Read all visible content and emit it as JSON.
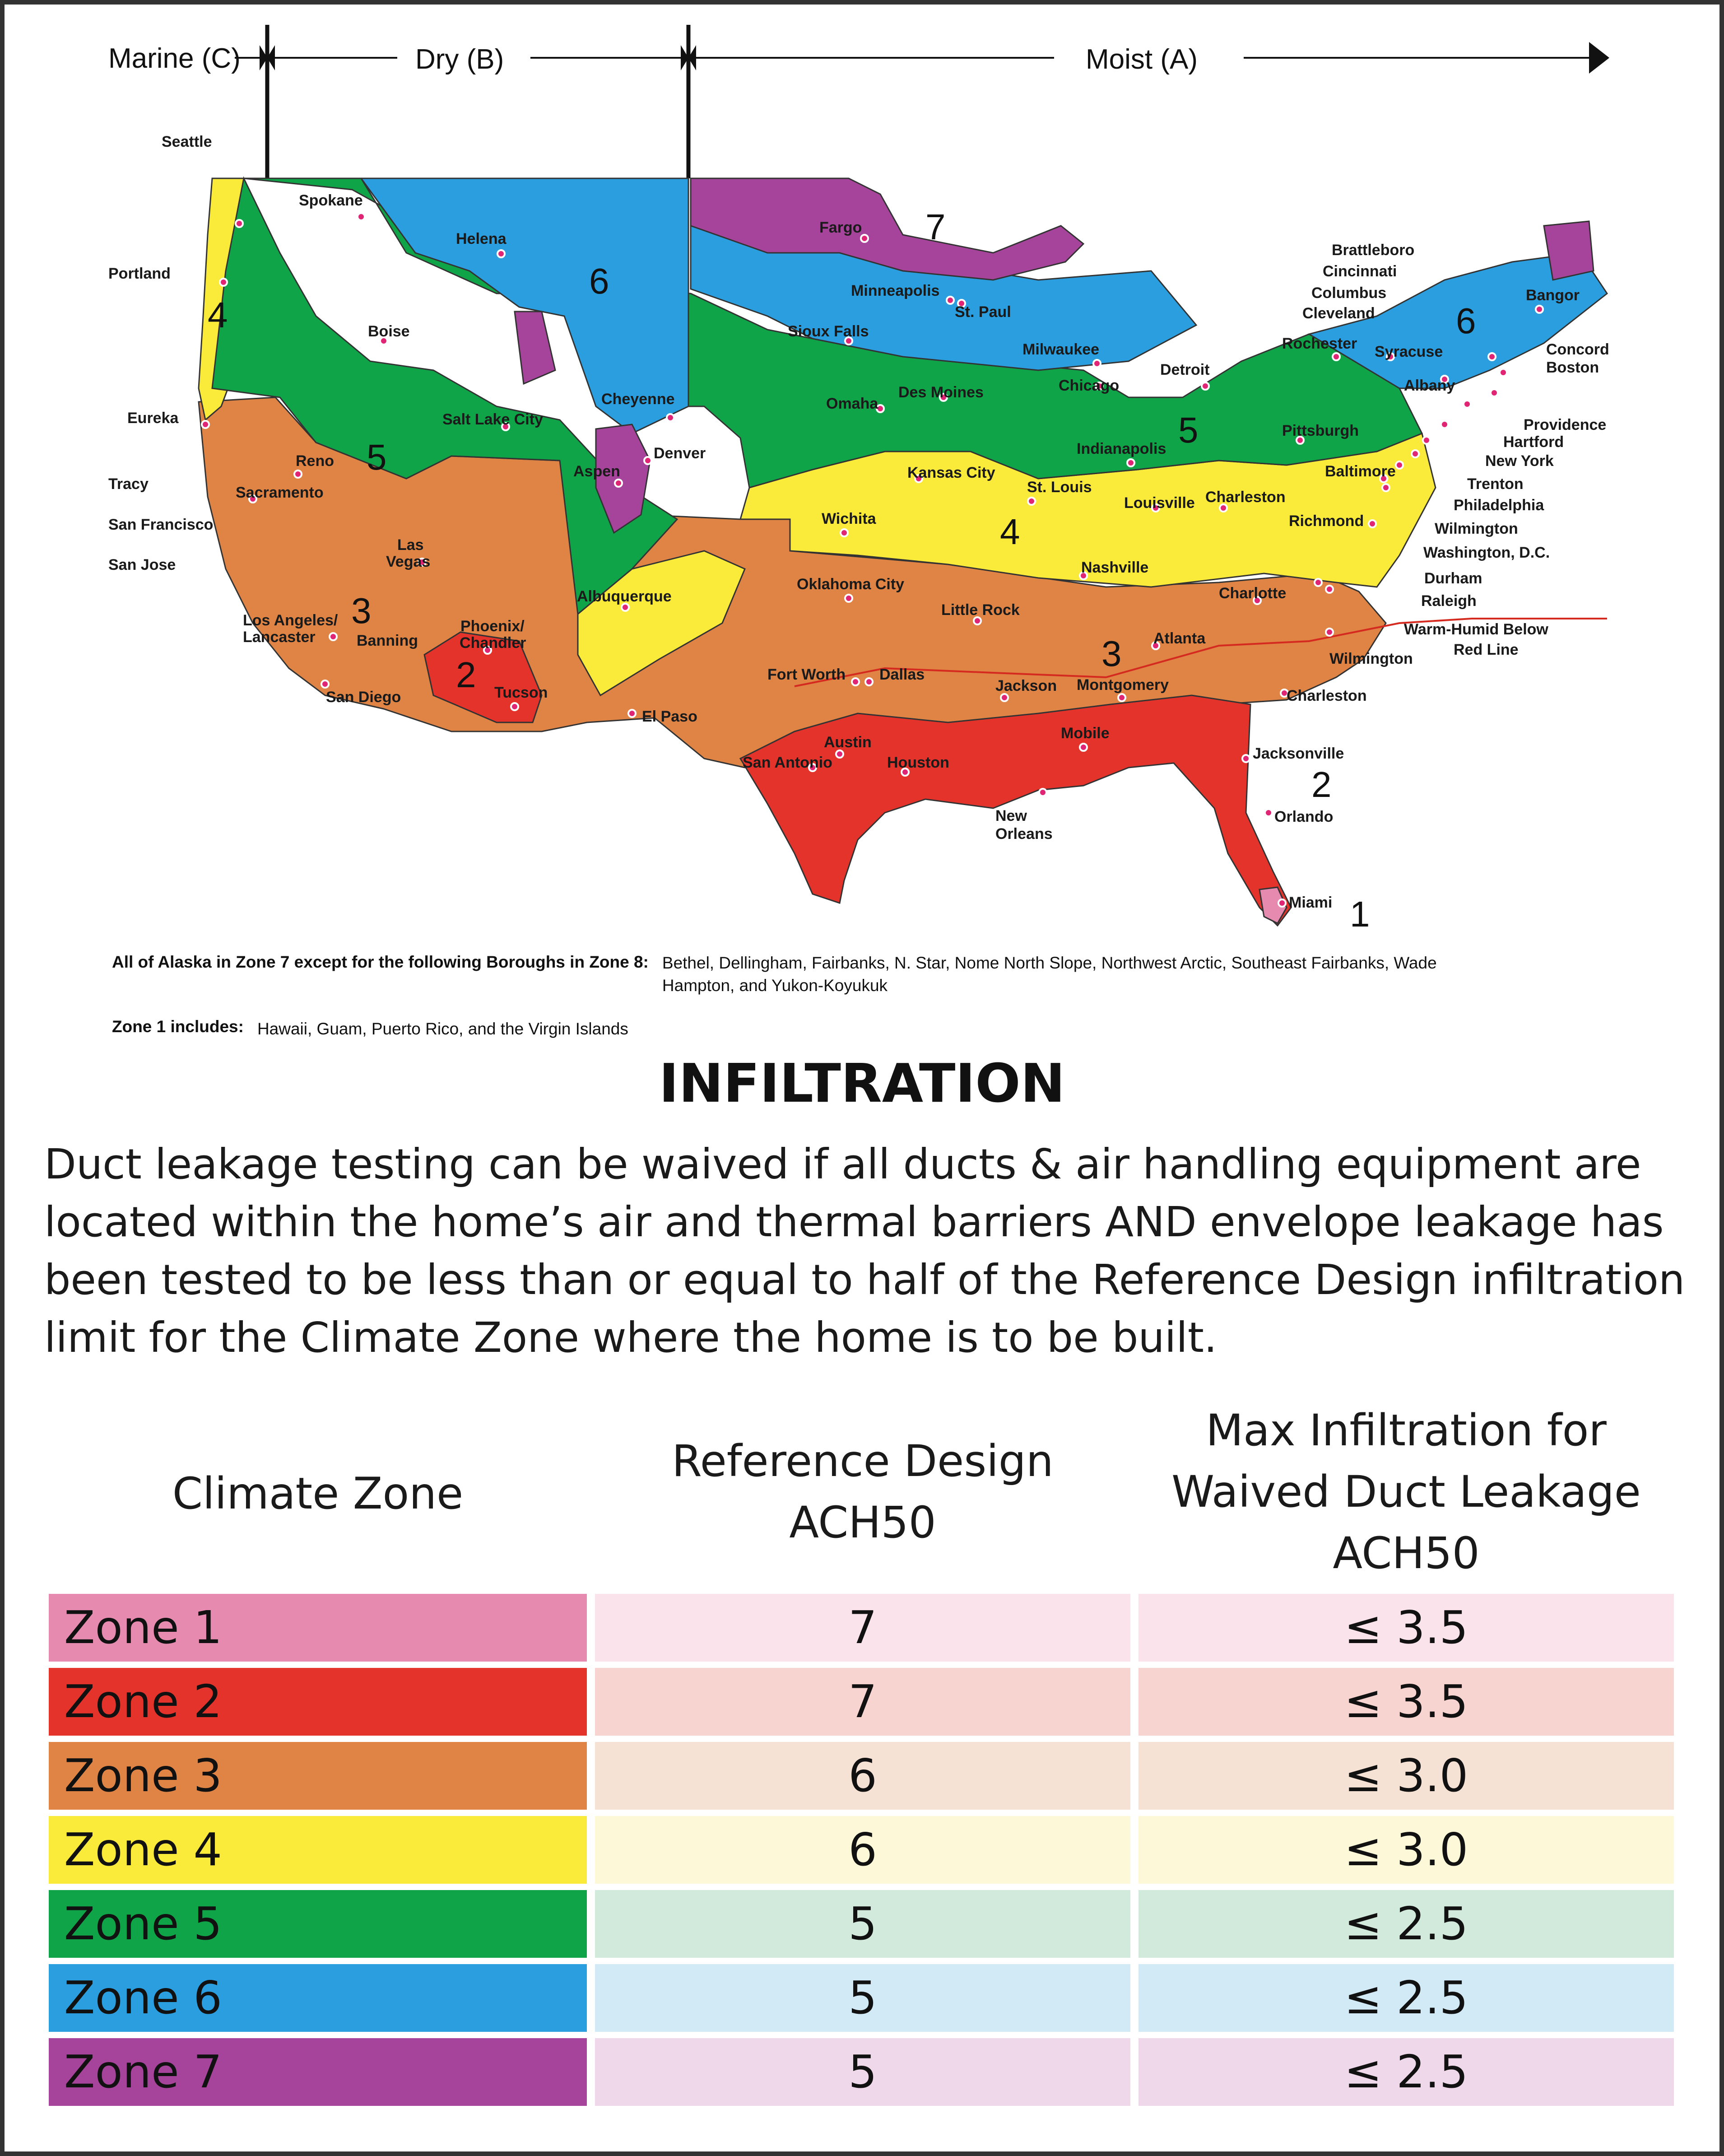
{
  "map": {
    "axis": {
      "marine": "Marine (C)",
      "dry": "Dry (B)",
      "moist": "Moist (A)"
    },
    "zone_labels": [
      "1",
      "2",
      "2",
      "3",
      "3",
      "4",
      "4",
      "5",
      "5",
      "6",
      "6",
      "7"
    ],
    "warm_humid": [
      "Warm-Humid Below",
      "Red Line"
    ],
    "cities": {
      "seattle": "Seattle",
      "portland": "Portland",
      "eureka": "Eureka",
      "tracy": "Tracy",
      "san_francisco": "San Francisco",
      "san_jose": "San Jose",
      "sacramento": "Sacramento",
      "reno": "Reno",
      "los_angeles": "Los Angeles/",
      "lancaster": "Lancaster",
      "banning": "Banning",
      "san_diego": "San Diego",
      "las": "Las",
      "vegas": "Vegas",
      "phoenix": "Phoenix/",
      "chandler": "Chandler",
      "tucson": "Tucson",
      "spokane": "Spokane",
      "boise": "Boise",
      "helena": "Helena",
      "salt_lake_city": "Salt Lake City",
      "cheyenne": "Cheyenne",
      "denver": "Denver",
      "aspen": "Aspen",
      "albuquerque": "Albuquerque",
      "el_paso": "El Paso",
      "fargo": "Fargo",
      "minneapolis": "Minneapolis",
      "st_paul": "St. Paul",
      "sioux_falls": "Sioux Falls",
      "omaha": "Omaha",
      "des_moines": "Des Moines",
      "kansas_city": "Kansas City",
      "wichita": "Wichita",
      "oklahoma_city": "Oklahoma City",
      "fort_worth": "Fort Worth",
      "dallas": "Dallas",
      "austin": "Austin",
      "san_antonio": "San Antonio",
      "houston": "Houston",
      "little_rock": "Little Rock",
      "jackson": "Jackson",
      "new": "New",
      "orleans": "Orleans",
      "mobile": "Mobile",
      "montgomery": "Montgomery",
      "atlanta": "Atlanta",
      "nashville": "Nashville",
      "st_louis": "St. Louis",
      "louisville": "Louisville",
      "charleston_wv": "Charleston",
      "indianapolis": "Indianapolis",
      "chicago": "Chicago",
      "milwaukee": "Milwaukee",
      "detroit": "Detroit",
      "pittsburgh": "Pittsburgh",
      "baltimore": "Baltimore",
      "richmond": "Richmond",
      "charlotte": "Charlotte",
      "wilmington_nc": "Wilmington",
      "charleston_sc": "Charleston",
      "jacksonville": "Jacksonville",
      "orlando": "Orlando",
      "miami": "Miami",
      "rochester": "Rochester",
      "syracuse": "Syracuse",
      "albany": "Albany",
      "bangor": "Bangor",
      "brattleboro": "Brattleboro",
      "cincinnati": "Cincinnati",
      "columbus": "Columbus",
      "cleveland": "Cleveland",
      "concord": "Concord",
      "boston": "Boston",
      "providence": "Providence",
      "hartford": "Hartford",
      "new_york": "New York",
      "trenton": "Trenton",
      "philadelphia": "Philadelphia",
      "wilmington_de": "Wilmington",
      "washington_dc": "Washington, D.C.",
      "durham": "Durham",
      "raleigh": "Raleigh"
    }
  },
  "notes": [
    {
      "key": "All of Alaska in Zone 7 except for the following Boroughs in Zone 8:",
      "lines": [
        "Bethel, Dellingham, Fairbanks, N. Star, Nome North Slope, Northwest Arctic, Southeast Fairbanks, Wade",
        "Hampton, and Yukon-Koyukuk"
      ]
    },
    {
      "key": "Zone 1 includes:",
      "lines": [
        "Hawaii, Guam, Puerto Rico, and the Virgin Islands"
      ]
    }
  ],
  "title": "INFILTRATION",
  "paragraph": [
    "Duct leakage testing can be waived if all ducts & air handling equipment are",
    "located within the home’s air and thermal barriers AND envelope leakage has",
    "been tested to be less than or equal to half of the Reference Design infiltration",
    "limit for the Climate Zone where the home is to be built."
  ],
  "table": {
    "headers": {
      "zone": "Climate Zone",
      "ref": [
        "Reference Design",
        "ACH50"
      ],
      "max": [
        "Max Infiltration for",
        "Waived Duct Leakage",
        "ACH50"
      ]
    },
    "rows": [
      {
        "zone": "Zone 1",
        "ref": "7",
        "max": "≤ 3.5",
        "color": "#e68ab0",
        "tint": "#fbe3ec"
      },
      {
        "zone": "Zone 2",
        "ref": "7",
        "max": "≤ 3.5",
        "color": "#e3332a",
        "tint": "#f8d4d0"
      },
      {
        "zone": "Zone 3",
        "ref": "6",
        "max": "≤ 3.0",
        "color": "#df8445",
        "tint": "#f6e2d5"
      },
      {
        "zone": "Zone 4",
        "ref": "6",
        "max": "≤ 3.0",
        "color": "#faea3a",
        "tint": "#fdf8d8"
      },
      {
        "zone": "Zone 5",
        "ref": "5",
        "max": "≤ 2.5",
        "color": "#10a448",
        "tint": "#d2eadb"
      },
      {
        "zone": "Zone 6",
        "ref": "5",
        "max": "≤ 2.5",
        "color": "#2a9ede",
        "tint": "#d2e9f6"
      },
      {
        "zone": "Zone 7",
        "ref": "5",
        "max": "≤ 2.5",
        "color": "#a6449b",
        "tint": "#efd8ea"
      }
    ]
  }
}
